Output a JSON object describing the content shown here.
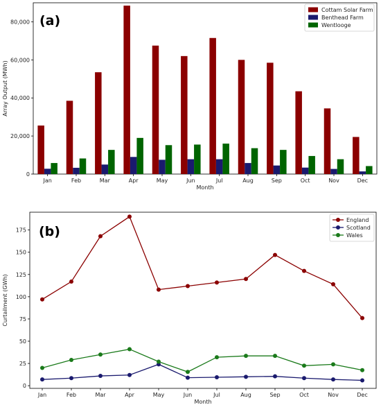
{
  "chart_data": [
    {
      "type": "bar",
      "panel_label": "(a)",
      "title": "",
      "xlabel": "Month",
      "ylabel": "Array Output (MWh)",
      "ylim": [
        0,
        90000
      ],
      "yticks": [
        0,
        20000,
        40000,
        60000,
        80000
      ],
      "ytick_labels": [
        "0",
        "20,000",
        "40,000",
        "60,000",
        "80,000"
      ],
      "grid": false,
      "legend_position": "top-right",
      "categories": [
        "Jan",
        "Feb",
        "Mar",
        "Apr",
        "May",
        "Jun",
        "Jul",
        "Aug",
        "Sep",
        "Oct",
        "Nov",
        "Dec"
      ],
      "series": [
        {
          "name": "Cottam Solar Farm",
          "color": "#8b0000",
          "values": [
            25500,
            38500,
            53500,
            88500,
            67500,
            62000,
            71500,
            60000,
            58500,
            43500,
            34500,
            19500
          ]
        },
        {
          "name": "Benthead Farm",
          "color": "#1a1a6e",
          "values": [
            2800,
            3300,
            5000,
            9000,
            7500,
            7800,
            7800,
            5800,
            4500,
            3400,
            2700,
            1400
          ]
        },
        {
          "name": "Wentlooge",
          "color": "#006400",
          "values": [
            5800,
            8200,
            12700,
            19000,
            15200,
            15500,
            16000,
            13600,
            12700,
            9500,
            7800,
            4200
          ]
        }
      ]
    },
    {
      "type": "line",
      "panel_label": "(b)",
      "title": "",
      "xlabel": "Month",
      "ylabel": "Curtailment (GWh)",
      "ylim": [
        -3,
        195
      ],
      "yticks": [
        0,
        25,
        50,
        75,
        100,
        125,
        150,
        175
      ],
      "ytick_labels": [
        "0",
        "25",
        "50",
        "75",
        "100",
        "125",
        "150",
        "175"
      ],
      "grid": false,
      "legend_position": "top-right",
      "categories": [
        "Jan",
        "Feb",
        "Mar",
        "Apr",
        "May",
        "Jun",
        "Jul",
        "Aug",
        "Sep",
        "Oct",
        "Nov",
        "Dec"
      ],
      "series": [
        {
          "name": "England",
          "color": "#8b0000",
          "values": [
            97,
            117,
            168,
            190,
            108,
            112,
            116,
            120,
            147,
            129,
            114,
            76
          ]
        },
        {
          "name": "Scotland",
          "color": "#1a1a6e",
          "values": [
            7,
            8.5,
            11,
            12,
            24,
            9,
            9.5,
            10,
            10.5,
            8.5,
            7,
            6
          ]
        },
        {
          "name": "Wales",
          "color": "#1a7a1a",
          "values": [
            20,
            29,
            35,
            41,
            27,
            15.5,
            32,
            33.5,
            33.5,
            22.5,
            24,
            17.5
          ]
        }
      ]
    }
  ]
}
